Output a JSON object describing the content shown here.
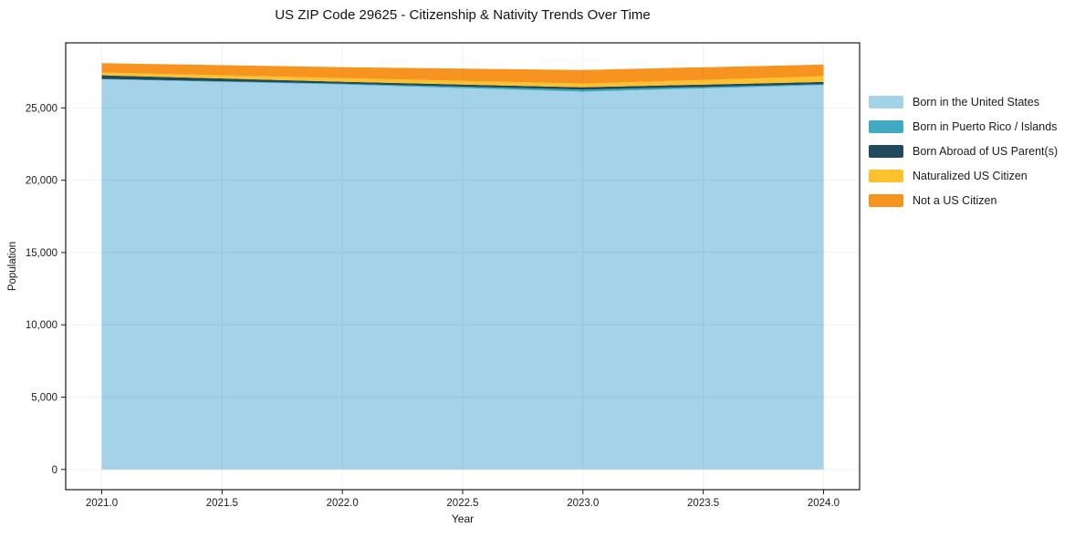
{
  "title": "US ZIP Code 29625 - Citizenship & Nativity Trends Over Time",
  "axes": {
    "x_label": "Year",
    "y_label": "Population",
    "x_ticks": [
      {
        "value": 2021.0,
        "label": "2021.0"
      },
      {
        "value": 2021.5,
        "label": "2021.5"
      },
      {
        "value": 2022.0,
        "label": "2022.0"
      },
      {
        "value": 2022.5,
        "label": "2022.5"
      },
      {
        "value": 2023.0,
        "label": "2023.0"
      },
      {
        "value": 2023.5,
        "label": "2023.5"
      },
      {
        "value": 2024.0,
        "label": "2024.0"
      }
    ],
    "y_ticks": [
      {
        "value": 0,
        "label": "0"
      },
      {
        "value": 5000,
        "label": "5,000"
      },
      {
        "value": 10000,
        "label": "10,000"
      },
      {
        "value": 15000,
        "label": "15,000"
      },
      {
        "value": 20000,
        "label": "20,000"
      },
      {
        "value": 25000,
        "label": "25,000"
      }
    ]
  },
  "colors": {
    "spine": "#1a1a1a",
    "grid": "rgba(0,0,0,0.055)",
    "tick_text": "#1a1a1a"
  },
  "chart_data": {
    "type": "area",
    "stacked": true,
    "title": "US ZIP Code 29625 - Citizenship & Nativity Trends Over Time",
    "xlabel": "Year",
    "ylabel": "Population",
    "x": [
      2021,
      2022,
      2023,
      2024
    ],
    "series": [
      {
        "name": "Born in the United States",
        "color": "#a3d2e9",
        "values": [
          26980,
          26620,
          26120,
          26580
        ]
      },
      {
        "name": "Born in Puerto Rico / Islands",
        "color": "#41a9c4",
        "values": [
          25,
          55,
          140,
          60
        ]
      },
      {
        "name": "Born Abroad of US Parent(s)",
        "color": "#20495c",
        "values": [
          255,
          135,
          170,
          160
        ]
      },
      {
        "name": "Naturalized US Citizen",
        "color": "#fcc22d",
        "values": [
          190,
          250,
          250,
          390
        ]
      },
      {
        "name": "Not a US Citizen",
        "color": "#f79420",
        "values": [
          650,
          760,
          945,
          810
        ]
      }
    ],
    "totals_by_year": [
      28100,
      27820,
      27625,
      28000
    ],
    "xlim": [
      2020.85,
      2024.15
    ],
    "ylim": [
      -1400,
      29500
    ],
    "grid": true,
    "legend_position": "right"
  }
}
